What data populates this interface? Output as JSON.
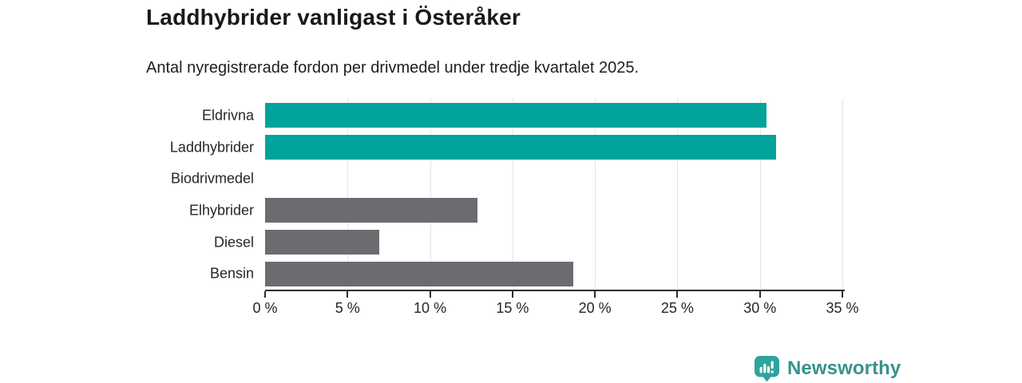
{
  "title": "Laddhybrider vanligast i Österåker",
  "subtitle": "Antal nyregistrerade fordon per drivmedel under tredje kvartalet 2025.",
  "chart_data": {
    "type": "bar",
    "orientation": "horizontal",
    "title": "Laddhybrider vanligast i Österåker",
    "subtitle": "Antal nyregistrerade fordon per drivmedel under tredje kvartalet 2025.",
    "categories": [
      "Eldrivna",
      "Laddhybrider",
      "Biodrivmedel",
      "Elhybrider",
      "Diesel",
      "Bensin"
    ],
    "values": [
      30.4,
      31.0,
      0,
      12.9,
      6.9,
      18.7
    ],
    "unit": "%",
    "bar_colors": [
      "#00a49a",
      "#00a49a",
      "#6c6b70",
      "#6c6b70",
      "#6c6b70",
      "#6c6b70"
    ],
    "xlim": [
      0,
      35
    ],
    "x_ticks": [
      0,
      5,
      10,
      15,
      20,
      25,
      30,
      35
    ],
    "x_tick_labels": [
      "0 %",
      "5 %",
      "10 %",
      "15 %",
      "20 %",
      "25 %",
      "30 %",
      "35 %"
    ],
    "grid": "vertical-only, light gray, no line at 0",
    "legend": "none"
  },
  "colors": {
    "highlight_teal": "#00a49a",
    "neutral_gray": "#6c6b70",
    "gridline": "#e4e4e4",
    "axis": "#2d2d2d",
    "text": "#262626",
    "title_text": "#191919",
    "logo_icon_teal": "#2fa39e",
    "logo_text_teal": "#38918d"
  },
  "branding": {
    "logo_text": "Newsworthy",
    "logo_icon": "bar-chart-speech-bubble-icon"
  }
}
